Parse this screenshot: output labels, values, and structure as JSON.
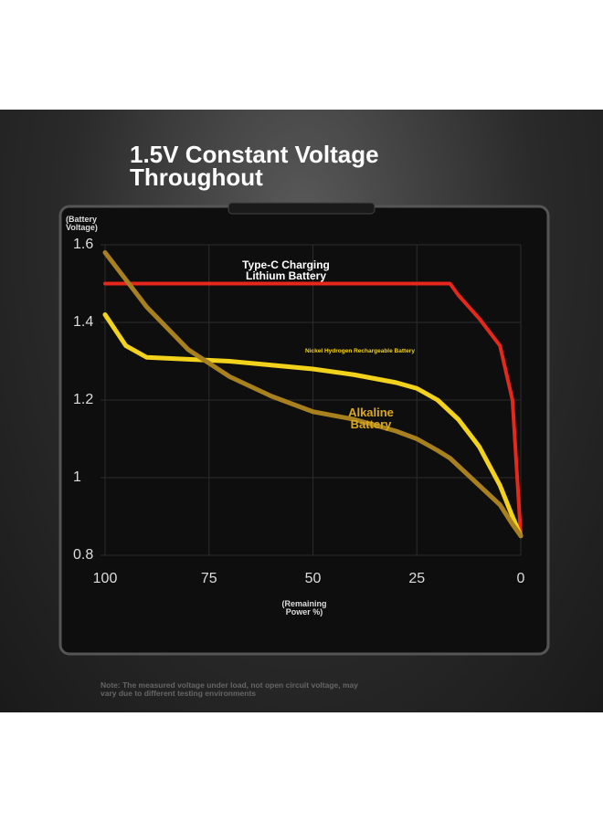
{
  "chart_data": {
    "type": "line",
    "title": "1.5V Constant Voltage Throughout",
    "y_label": "(Battery Voltage)",
    "x_label": "(Remaining Power %)",
    "note": "Note: The measured voltage under load, not open circuit voltage, may vary due to different testing environments",
    "x": [
      100,
      95,
      90,
      80,
      70,
      60,
      50,
      40,
      30,
      25,
      20,
      17,
      15,
      10,
      5,
      2,
      0
    ],
    "series": [
      {
        "name": "Type-C Charging Lithium Battery",
        "color": "#e8271c",
        "values": [
          1.5,
          1.5,
          1.5,
          1.5,
          1.5,
          1.5,
          1.5,
          1.5,
          1.5,
          1.5,
          1.5,
          1.5,
          1.47,
          1.41,
          1.34,
          1.2,
          0.85
        ]
      },
      {
        "name": "Nickel Hydrogen Rechargeable Battery",
        "color": "#f2d21a",
        "values": [
          1.42,
          1.34,
          1.31,
          1.305,
          1.3,
          1.29,
          1.28,
          1.265,
          1.245,
          1.23,
          1.2,
          1.17,
          1.15,
          1.08,
          0.98,
          0.9,
          0.85
        ]
      },
      {
        "name": "Alkaline Battery",
        "color": "#a8801e",
        "values": [
          1.58,
          1.51,
          1.44,
          1.33,
          1.26,
          1.21,
          1.17,
          1.15,
          1.12,
          1.1,
          1.07,
          1.05,
          1.03,
          0.98,
          0.93,
          0.88,
          0.85
        ]
      }
    ],
    "xlim": [
      100,
      0
    ],
    "xticks": [
      100,
      75,
      50,
      25,
      0
    ],
    "ylim": [
      0.8,
      1.6
    ],
    "yticks": [
      0.8,
      1,
      1.2,
      1.4,
      1.6
    ],
    "grid": true
  }
}
